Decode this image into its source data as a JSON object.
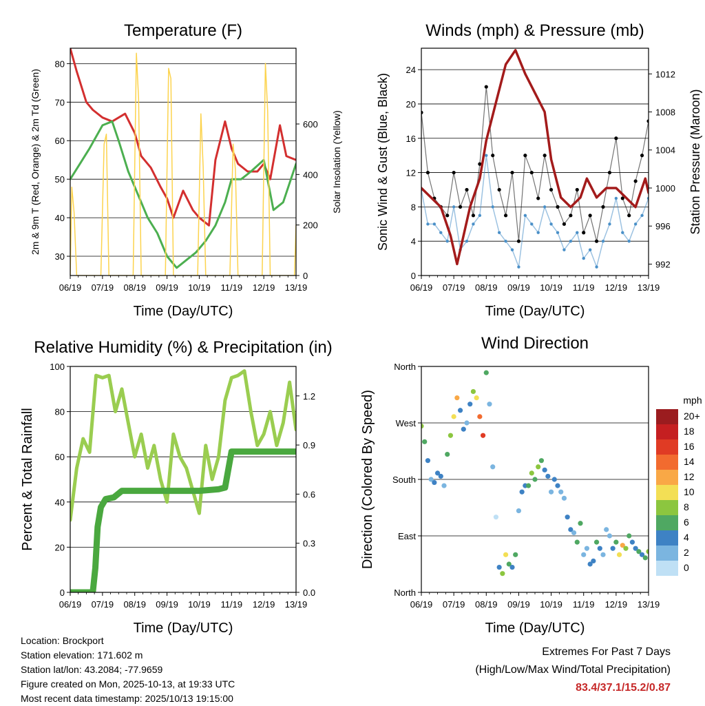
{
  "panels": [
    {
      "id": "temperature",
      "type": "line",
      "title": "Temperature (F)",
      "xlabel": "Time (Day/UTC)",
      "ylabel": "2m & 9m T (Red, Orange) & 2m Td (Green)",
      "y2label": "Solar Insolation (Yellow)",
      "x_ticks": [
        "06/19",
        "07/19",
        "08/19",
        "09/19",
        "10/19",
        "11/19",
        "12/19",
        "13/19"
      ],
      "y_ticks": [
        30,
        40,
        50,
        60,
        70,
        80
      ],
      "y2_ticks": [
        0,
        200,
        400,
        600
      ],
      "ylim": [
        25,
        84
      ],
      "y2lim": [
        0,
        900
      ],
      "series": [
        {
          "name": "2m T",
          "color": "#d32f2f",
          "x": [
            0,
            0.2,
            0.5,
            0.7,
            1,
            1.3,
            1.7,
            2,
            2.2,
            2.5,
            2.8,
            3,
            3.2,
            3.5,
            3.8,
            4,
            4.3,
            4.5,
            4.8,
            5,
            5.2,
            5.5,
            5.8,
            6,
            6.2,
            6.5,
            6.7,
            7
          ],
          "y": [
            84,
            78,
            70,
            68,
            66,
            65,
            67,
            62,
            56,
            53,
            48,
            45,
            40,
            47,
            42,
            40,
            38,
            55,
            65,
            58,
            54,
            52,
            52,
            54,
            50,
            64,
            56,
            55
          ]
        },
        {
          "name": "2m Td",
          "color": "#4caf50",
          "x": [
            0,
            0.3,
            0.6,
            1,
            1.3,
            1.5,
            1.8,
            2.1,
            2.4,
            2.7,
            3,
            3.3,
            3.6,
            3.9,
            4.2,
            4.5,
            4.8,
            5,
            5.3,
            5.6,
            6,
            6.3,
            6.6,
            7
          ],
          "y": [
            50,
            54,
            58,
            64,
            65,
            60,
            52,
            46,
            40,
            36,
            30,
            27,
            29,
            31,
            34,
            38,
            44,
            50,
            50,
            52,
            55,
            42,
            44,
            54
          ]
        },
        {
          "name": "Solar Insolation",
          "axis": "y2",
          "color": "#fcd34d",
          "x": [
            0,
            0.05,
            0.12,
            0.2,
            0.5,
            0.95,
            1.05,
            1.12,
            1.2,
            1.5,
            1.95,
            2.05,
            2.12,
            2.2,
            2.5,
            2.95,
            3.05,
            3.12,
            3.2,
            3.5,
            3.95,
            4.05,
            4.12,
            4.2,
            4.5,
            4.95,
            5.05,
            5.12,
            5.2,
            5.5,
            5.95,
            6.05,
            6.12,
            6.2,
            6.5,
            6.95,
            7
          ],
          "y": [
            0,
            350,
            250,
            0,
            0,
            0,
            520,
            560,
            0,
            0,
            0,
            880,
            700,
            0,
            0,
            0,
            820,
            780,
            0,
            0,
            0,
            640,
            430,
            0,
            0,
            0,
            520,
            420,
            0,
            0,
            0,
            840,
            650,
            0,
            0,
            0,
            200
          ]
        }
      ]
    },
    {
      "id": "winds",
      "type": "scatter",
      "title": "Winds (mph) & Pressure (mb)",
      "xlabel": "Time (Day/UTC)",
      "ylabel": "Sonic Wind & Gust (Blue, Black)",
      "y2label": "Station Pressure (Maroon)",
      "x_ticks": [
        "06/19",
        "07/19",
        "08/19",
        "09/19",
        "10/19",
        "11/19",
        "12/19",
        "13/19"
      ],
      "y_ticks": [
        0,
        4,
        8,
        12,
        16,
        20,
        24
      ],
      "y2_ticks": [
        992,
        996,
        1000,
        1004,
        1008,
        1012
      ],
      "ylim": [
        0,
        26.5
      ],
      "y2lim": [
        990.8,
        1014.7
      ],
      "series": [
        {
          "name": "Gust",
          "color": "#000000",
          "x": [
            0,
            0.2,
            0.4,
            0.6,
            0.8,
            1,
            1.2,
            1.4,
            1.6,
            1.8,
            2,
            2.2,
            2.4,
            2.6,
            2.8,
            3,
            3.2,
            3.4,
            3.6,
            3.8,
            4,
            4.2,
            4.4,
            4.6,
            4.8,
            5,
            5.2,
            5.4,
            5.6,
            5.8,
            6,
            6.2,
            6.4,
            6.6,
            6.8,
            7
          ],
          "y": [
            19,
            12,
            9,
            8,
            7,
            12,
            8,
            10,
            7,
            13,
            22,
            14,
            10,
            7,
            12,
            4,
            14,
            12,
            9,
            14,
            10,
            8,
            6,
            7,
            10,
            5,
            7,
            4,
            8,
            12,
            16,
            9,
            7,
            11,
            14,
            18
          ]
        },
        {
          "name": "Sonic Wind",
          "color": "#4a90c8",
          "x": [
            0,
            0.2,
            0.4,
            0.6,
            0.8,
            1,
            1.2,
            1.4,
            1.6,
            1.8,
            2,
            2.2,
            2.4,
            2.6,
            2.8,
            3,
            3.2,
            3.4,
            3.6,
            3.8,
            4,
            4.2,
            4.4,
            4.6,
            4.8,
            5,
            5.2,
            5.4,
            5.6,
            5.8,
            6,
            6.2,
            6.4,
            6.6,
            6.8,
            7
          ],
          "y": [
            10,
            6,
            6,
            5,
            4,
            8,
            3,
            4,
            6,
            7,
            14,
            8,
            5,
            4,
            3,
            1,
            7,
            6,
            5,
            8,
            6,
            5,
            3,
            4,
            5,
            2,
            3,
            1,
            4,
            6,
            9,
            5,
            4,
            6,
            7,
            9
          ]
        },
        {
          "name": "Station Pressure",
          "axis": "y2",
          "color": "#a31b1b",
          "x": [
            0,
            0.3,
            0.6,
            0.9,
            1.1,
            1.3,
            1.5,
            1.8,
            2,
            2.3,
            2.6,
            2.9,
            3.2,
            3.5,
            3.8,
            4,
            4.3,
            4.6,
            4.9,
            5.1,
            5.4,
            5.7,
            6,
            6.3,
            6.6,
            6.9,
            7
          ],
          "y": [
            1000,
            999,
            998,
            995,
            992,
            995,
            998,
            1001,
            1005,
            1009,
            1013,
            1014.5,
            1012,
            1010,
            1008,
            1003,
            999,
            998,
            999,
            1001,
            999,
            1000,
            1000,
            999,
            998,
            1001,
            999.5
          ]
        }
      ]
    },
    {
      "id": "humidity",
      "type": "line",
      "title": "Relative Humidity (%) & Precipitation (in)",
      "xlabel": "Time (Day/UTC)",
      "ylabel": "Percent & Total Rainfall",
      "x_ticks": [
        "06/19",
        "07/19",
        "08/19",
        "09/19",
        "10/19",
        "11/19",
        "12/19",
        "13/19"
      ],
      "y_ticks": [
        0,
        20,
        40,
        60,
        80,
        100
      ],
      "y2_ticks": [
        "0.0",
        "0.3",
        "0.6",
        "0.9",
        "1.2"
      ],
      "ylim": [
        0,
        100
      ],
      "y2lim": [
        0,
        1.38
      ],
      "series": [
        {
          "name": "Relative Humidity",
          "color": "#9acd50",
          "x": [
            0,
            0.2,
            0.4,
            0.6,
            0.8,
            1,
            1.2,
            1.4,
            1.6,
            1.8,
            2,
            2.2,
            2.4,
            2.6,
            2.8,
            3,
            3.2,
            3.4,
            3.6,
            3.8,
            4,
            4.2,
            4.4,
            4.6,
            4.8,
            5,
            5.2,
            5.4,
            5.6,
            5.8,
            6,
            6.2,
            6.4,
            6.6,
            6.8,
            7
          ],
          "y": [
            32,
            55,
            68,
            62,
            96,
            95,
            96,
            80,
            90,
            75,
            60,
            70,
            55,
            65,
            50,
            40,
            70,
            60,
            55,
            45,
            35,
            65,
            50,
            60,
            85,
            95,
            96,
            98,
            80,
            65,
            70,
            80,
            65,
            75,
            93,
            72
          ]
        },
        {
          "name": "Total Precipitation",
          "axis": "y2",
          "color": "#4aa83f",
          "x": [
            0,
            0.7,
            0.78,
            0.85,
            0.95,
            1.1,
            1.35,
            1.6,
            2,
            3,
            4,
            4.6,
            4.8,
            4.9,
            5,
            5.5,
            6,
            7
          ],
          "y": [
            0,
            0,
            0.15,
            0.4,
            0.52,
            0.57,
            0.58,
            0.62,
            0.62,
            0.62,
            0.62,
            0.63,
            0.64,
            0.75,
            0.86,
            0.86,
            0.86,
            0.86
          ]
        }
      ]
    },
    {
      "id": "direction",
      "type": "scatter",
      "title": "Wind Direction",
      "xlabel": "Time (Day/UTC)",
      "ylabel": "Direction (Colored By Speed)",
      "x_ticks": [
        "06/19",
        "07/19",
        "08/19",
        "09/19",
        "10/19",
        "11/19",
        "12/19",
        "13/19"
      ],
      "y_ticks": [
        "North",
        "East",
        "South",
        "West",
        "North"
      ],
      "ylim": [
        0,
        360
      ],
      "x": [
        0,
        0.1,
        0.2,
        0.3,
        0.4,
        0.5,
        0.6,
        0.7,
        0.8,
        0.9,
        1,
        1.1,
        1.2,
        1.3,
        1.4,
        1.5,
        1.6,
        1.7,
        1.8,
        1.9,
        2,
        2.1,
        2.2,
        2.3,
        2.4,
        2.5,
        2.6,
        2.7,
        2.8,
        2.9,
        3,
        3.1,
        3.2,
        3.3,
        3.4,
        3.5,
        3.6,
        3.7,
        3.8,
        3.9,
        4,
        4.1,
        4.2,
        4.3,
        4.4,
        4.5,
        4.6,
        4.7,
        4.8,
        4.9,
        5,
        5.1,
        5.2,
        5.3,
        5.4,
        5.5,
        5.6,
        5.7,
        5.8,
        5.9,
        6,
        6.1,
        6.2,
        6.3,
        6.4,
        6.5,
        6.6,
        6.7,
        6.8,
        6.9,
        7
      ],
      "y": [
        265,
        240,
        210,
        180,
        175,
        190,
        185,
        170,
        220,
        250,
        280,
        310,
        290,
        260,
        270,
        300,
        320,
        310,
        280,
        250,
        350,
        300,
        200,
        120,
        40,
        30,
        60,
        45,
        40,
        60,
        130,
        160,
        170,
        170,
        190,
        180,
        200,
        210,
        195,
        185,
        160,
        180,
        170,
        160,
        150,
        120,
        100,
        95,
        80,
        110,
        60,
        70,
        45,
        50,
        80,
        70,
        60,
        100,
        90,
        70,
        80,
        60,
        75,
        70,
        90,
        80,
        70,
        65,
        60,
        55,
        65
      ],
      "speeds": [
        8,
        6,
        4,
        3,
        4,
        5,
        4,
        3,
        6,
        8,
        10,
        12,
        5,
        4,
        3,
        4,
        8,
        11,
        14,
        16,
        7,
        3,
        2,
        1,
        5,
        8,
        10,
        6,
        4,
        7,
        3,
        4,
        5,
        6,
        8,
        7,
        9,
        6,
        5,
        4,
        3,
        4,
        5,
        3,
        2,
        4,
        5,
        3,
        6,
        7,
        2,
        3,
        4,
        5,
        6,
        4,
        3,
        2,
        3,
        5,
        7,
        10,
        12,
        8,
        6,
        5,
        4,
        6,
        5,
        7,
        9
      ],
      "legend": {
        "title": "mph",
        "labels": [
          "20+",
          "18",
          "16",
          "14",
          "12",
          "10",
          "8",
          "6",
          "4",
          "2",
          "0"
        ],
        "colors": [
          "#9b1c1f",
          "#c51f21",
          "#e03b24",
          "#f26b2f",
          "#f9a846",
          "#f3df55",
          "#8cc63f",
          "#4fa862",
          "#3e82c4",
          "#7bb5e0",
          "#bfe0f5"
        ]
      }
    }
  ],
  "footer": {
    "location": "Location: Brockport",
    "elevation": "Station elevation: 171.602 m",
    "latlon": "Station lat/lon: 43.2084; -77.9659",
    "created": "Figure created on Mon, 2025-10-13, at 19:33 UTC",
    "recent": "Most recent data timestamp: 2025/10/13 19:15:00",
    "extremes_title": "Extremes For Past 7 Days",
    "extremes_subtitle": "(High/Low/Max Wind/Total Precipitation)",
    "extremes_values": "83.4/37.1/15.2/0.87"
  }
}
